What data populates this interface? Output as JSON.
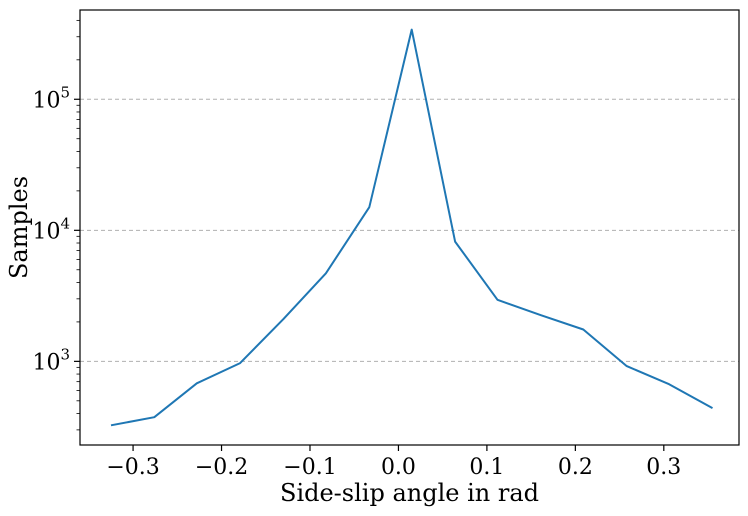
{
  "chart_data": {
    "type": "line",
    "title": "",
    "xlabel": "Side-slip angle in rad",
    "ylabel": "Samples",
    "xlim": [
      -0.36,
      0.385
    ],
    "ylim": [
      230,
      480000
    ],
    "yscale": "log",
    "grid": "y-major-dashed",
    "legend": "none",
    "line_color": "#1f77b4",
    "x_ticks": [
      -0.3,
      -0.2,
      -0.1,
      0.0,
      0.1,
      0.2,
      0.3
    ],
    "x_tick_labels": [
      "−0.3",
      "−0.2",
      "−0.1",
      "0.0",
      "0.1",
      "0.2",
      "0.3"
    ],
    "y_ticks": [
      {
        "value": 1000,
        "base": "10",
        "exp": "3"
      },
      {
        "value": 10000,
        "base": "10",
        "exp": "4"
      },
      {
        "value": 100000,
        "base": "10",
        "exp": "5"
      }
    ],
    "series": [
      {
        "x": [
          -0.325,
          -0.276,
          -0.228,
          -0.179,
          -0.13,
          -0.082,
          -0.033,
          0.015,
          0.064,
          0.112,
          0.161,
          0.209,
          0.258,
          0.306,
          0.355
        ],
        "y": [
          325,
          375,
          680,
          970,
          2100,
          4700,
          15000,
          340000,
          8200,
          2950,
          2250,
          1750,
          920,
          670,
          440
        ]
      }
    ]
  }
}
